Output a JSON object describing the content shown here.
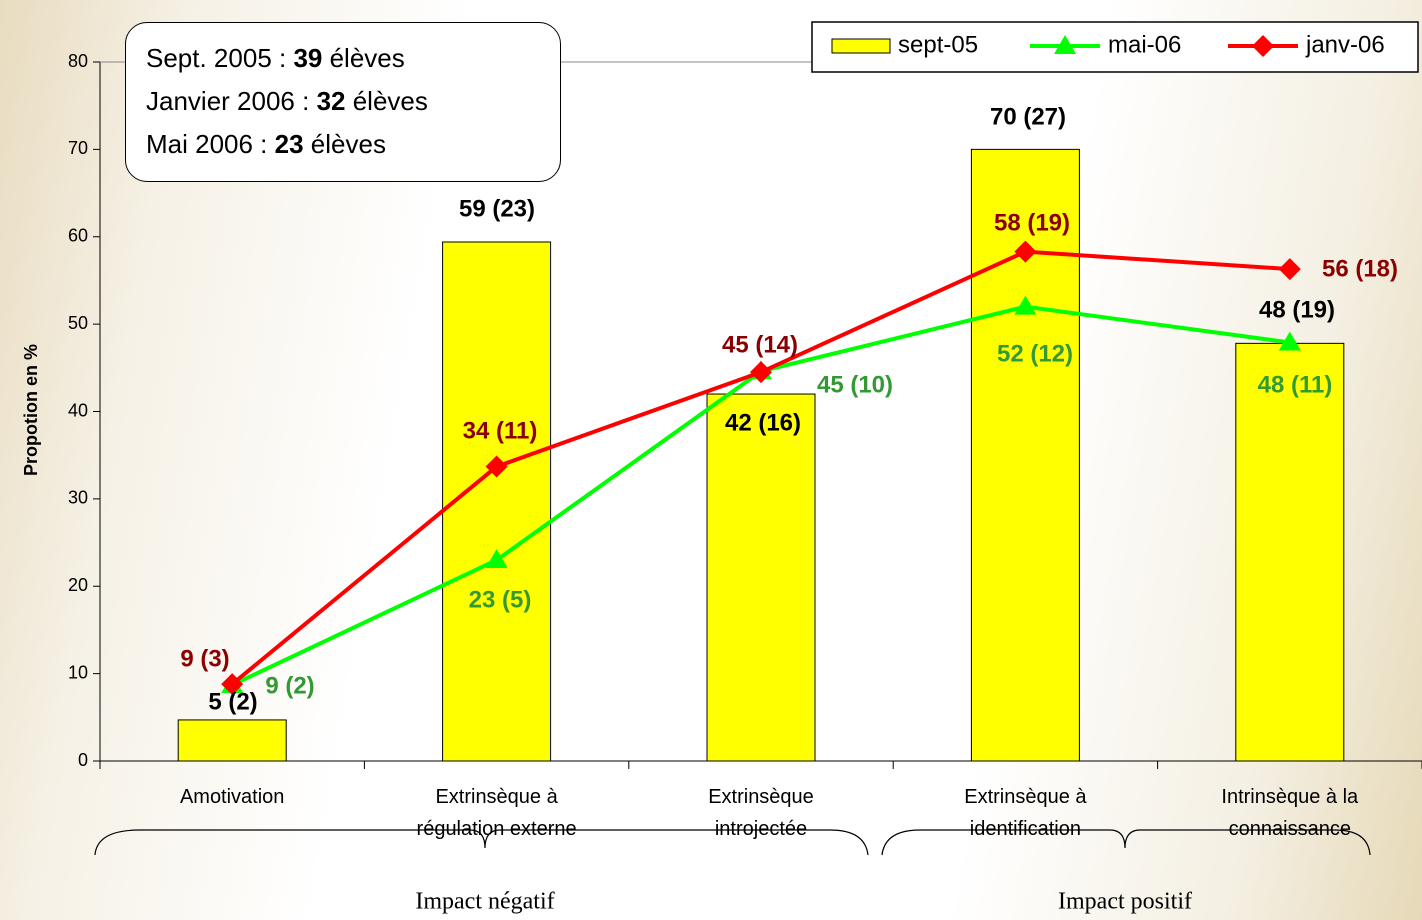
{
  "chart_data": {
    "type": "bar-line",
    "y_label": "Propotion en %",
    "categories": [
      "Amotivation",
      "Extrinsèque à\nrégulation externe",
      "Extrinsèque\nintrojectée",
      "Extrinsèque à\nidentification",
      "Intrinsèque à la\nconnaissance"
    ],
    "series": [
      {
        "name": "sept-05",
        "type": "bar",
        "color": "#ffff00",
        "values": [
          4.7,
          59.4,
          42,
          70,
          47.8
        ],
        "value_labels": [
          "5 (2)",
          "59 (23)",
          "42 (16)",
          "70 (27)",
          "48 (19)"
        ],
        "label_color": "#000000"
      },
      {
        "name": "mai-06",
        "type": "line",
        "marker": "triangle",
        "color": "#00ff00",
        "values": [
          8.7,
          23,
          44.6,
          52,
          47.9
        ],
        "value_labels": [
          "9 (2)",
          "23 (5)",
          "45 (10)",
          "52 (12)",
          "48 (11)"
        ],
        "label_color": "#339933"
      },
      {
        "name": "janv-06",
        "type": "line",
        "marker": "diamond",
        "color": "#ff0000",
        "values": [
          8.8,
          33.7,
          44.5,
          58.3,
          56.3
        ],
        "value_labels": [
          "9 (3)",
          "34 (11)",
          "45 (14)",
          "58 (19)",
          "56 (18)"
        ],
        "label_color": "#8b0000"
      }
    ],
    "ylim": [
      0,
      80
    ],
    "yticks": [
      0,
      10,
      20,
      30,
      40,
      50,
      60,
      70,
      80
    ],
    "info_box": [
      {
        "before": "Sept. 2005 : ",
        "bold": "39",
        "after": " élèves"
      },
      {
        "before": "Janvier 2006 : ",
        "bold": "32",
        "after": " élèves"
      },
      {
        "before": "Mai 2006 : ",
        "bold": "23",
        "after": " élèves"
      }
    ],
    "groups": [
      "Impact négatif",
      "Impact positif"
    ]
  }
}
